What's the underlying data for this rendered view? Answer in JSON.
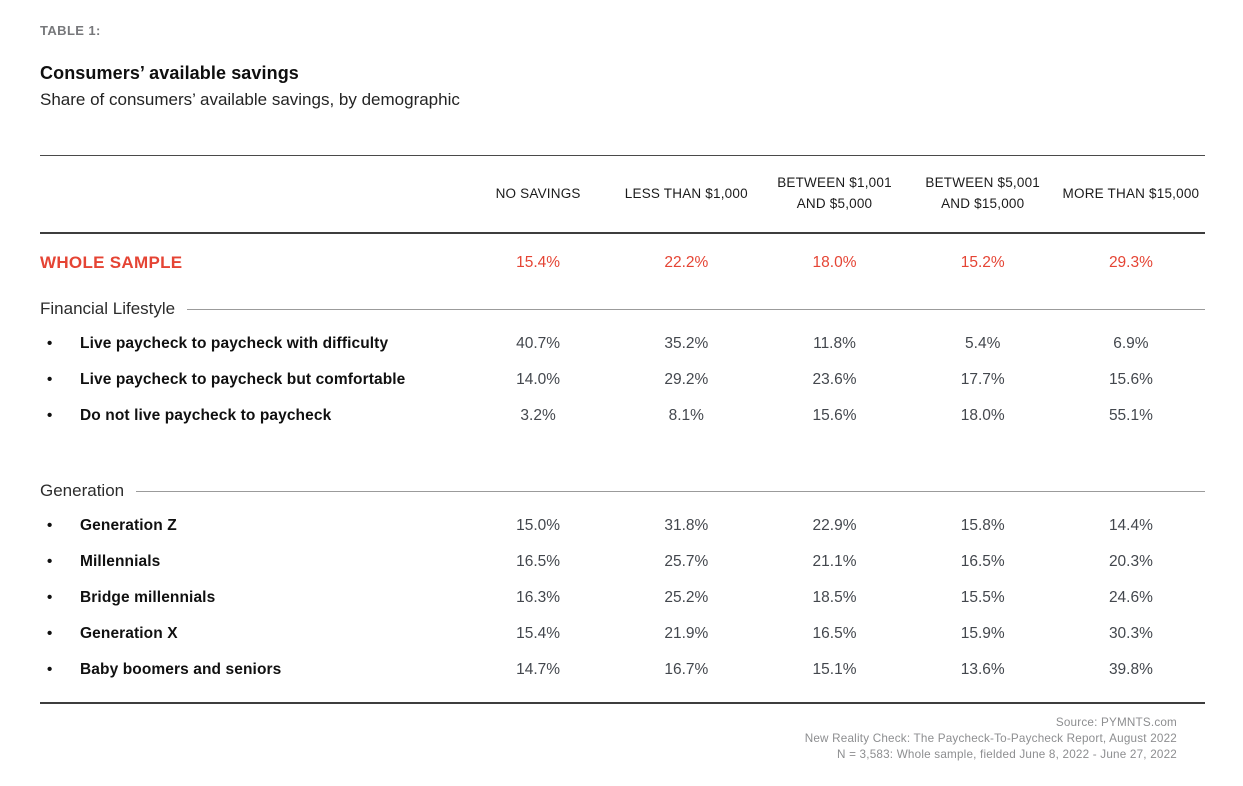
{
  "page": {
    "kicker": "TABLE 1:",
    "title": "Consumers’ available savings",
    "subtitle": "Share of consumers’ available savings, by demographic"
  },
  "table": {
    "columns": [
      "NO SAVINGS",
      "LESS THAN $1,000",
      "BETWEEN $1,001 AND $5,000",
      "BETWEEN $5,001 AND $15,000",
      "MORE THAN $15,000"
    ],
    "whole_sample": {
      "label": "WHOLE SAMPLE",
      "values": [
        "15.4%",
        "22.2%",
        "18.0%",
        "15.2%",
        "29.3%"
      ]
    },
    "sections": [
      {
        "heading": "Financial Lifestyle",
        "rows": [
          {
            "label": "Live paycheck to paycheck with difficulty",
            "values": [
              "40.7%",
              "35.2%",
              "11.8%",
              "5.4%",
              "6.9%"
            ]
          },
          {
            "label": "Live paycheck to paycheck but comfortable",
            "values": [
              "14.0%",
              "29.2%",
              "23.6%",
              "17.7%",
              "15.6%"
            ]
          },
          {
            "label": "Do not live paycheck to paycheck",
            "values": [
              "3.2%",
              "8.1%",
              "15.6%",
              "18.0%",
              "55.1%"
            ]
          }
        ]
      },
      {
        "heading": "Generation",
        "rows": [
          {
            "label": "Generation Z",
            "values": [
              "15.0%",
              "31.8%",
              "22.9%",
              "15.8%",
              "14.4%"
            ]
          },
          {
            "label": "Millennials",
            "values": [
              "16.5%",
              "25.7%",
              "21.1%",
              "16.5%",
              "20.3%"
            ]
          },
          {
            "label": "Bridge millennials",
            "values": [
              "16.3%",
              "25.2%",
              "18.5%",
              "15.5%",
              "24.6%"
            ]
          },
          {
            "label": "Generation X",
            "values": [
              "15.4%",
              "21.9%",
              "16.5%",
              "15.9%",
              "30.3%"
            ]
          },
          {
            "label": "Baby boomers and seniors",
            "values": [
              "14.7%",
              "16.7%",
              "15.1%",
              "13.6%",
              "39.8%"
            ]
          }
        ]
      }
    ]
  },
  "footer": {
    "lines": [
      "Source: PYMNTS.com",
      "New Reality Check: The Paycheck-To-Paycheck Report, August 2022",
      "N = 3,583: Whole sample, fielded June 8, 2022 - June 27, 2022"
    ]
  },
  "colors": {
    "accent_red": "#e54434",
    "kicker_gray": "#77787b",
    "value_gray": "#43474d",
    "footer_gray": "#8d8e90"
  },
  "chart_data": {
    "type": "table",
    "title": "Consumers’ available savings",
    "subtitle": "Share of consumers’ available savings, by demographic",
    "columns": [
      "No savings",
      "Less than $1,000",
      "Between $1,001 and $5,000",
      "Between $5,001 and $15,000",
      "More than $15,000"
    ],
    "unit": "percent",
    "rows": [
      {
        "group": "Whole sample",
        "label": "Whole sample",
        "values": [
          15.4,
          22.2,
          18.0,
          15.2,
          29.3
        ]
      },
      {
        "group": "Financial Lifestyle",
        "label": "Live paycheck to paycheck with difficulty",
        "values": [
          40.7,
          35.2,
          11.8,
          5.4,
          6.9
        ]
      },
      {
        "group": "Financial Lifestyle",
        "label": "Live paycheck to paycheck but comfortable",
        "values": [
          14.0,
          29.2,
          23.6,
          17.7,
          15.6
        ]
      },
      {
        "group": "Financial Lifestyle",
        "label": "Do not live paycheck to paycheck",
        "values": [
          3.2,
          8.1,
          15.6,
          18.0,
          55.1
        ]
      },
      {
        "group": "Generation",
        "label": "Generation Z",
        "values": [
          15.0,
          31.8,
          22.9,
          15.8,
          14.4
        ]
      },
      {
        "group": "Generation",
        "label": "Millennials",
        "values": [
          16.5,
          25.7,
          21.1,
          16.5,
          20.3
        ]
      },
      {
        "group": "Generation",
        "label": "Bridge millennials",
        "values": [
          16.3,
          25.2,
          18.5,
          15.5,
          24.6
        ]
      },
      {
        "group": "Generation",
        "label": "Generation X",
        "values": [
          15.4,
          21.9,
          16.5,
          15.9,
          30.3
        ]
      },
      {
        "group": "Generation",
        "label": "Baby boomers and seniors",
        "values": [
          14.7,
          16.7,
          15.1,
          13.6,
          39.8
        ]
      }
    ]
  }
}
